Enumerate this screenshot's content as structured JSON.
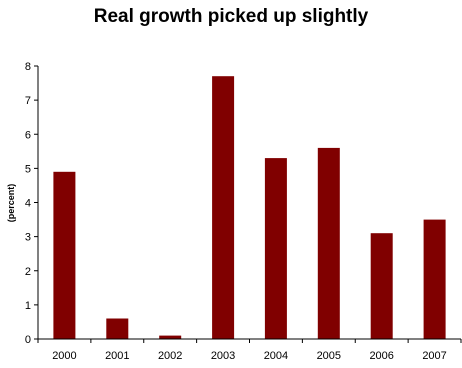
{
  "chart_data": {
    "type": "bar",
    "title": "Real growth picked up slightly",
    "xlabel": "",
    "ylabel": "(percent)",
    "categories": [
      "2000",
      "2001",
      "2002",
      "2003",
      "2004",
      "2005",
      "2006",
      "2007"
    ],
    "values": [
      4.9,
      0.6,
      0.1,
      7.7,
      5.3,
      5.6,
      3.1,
      3.5
    ],
    "ylim": [
      0,
      8
    ],
    "yticks": [
      0,
      1,
      2,
      3,
      4,
      5,
      6,
      7,
      8
    ],
    "grid": false,
    "legend": "none",
    "bar_color": "#800000"
  }
}
